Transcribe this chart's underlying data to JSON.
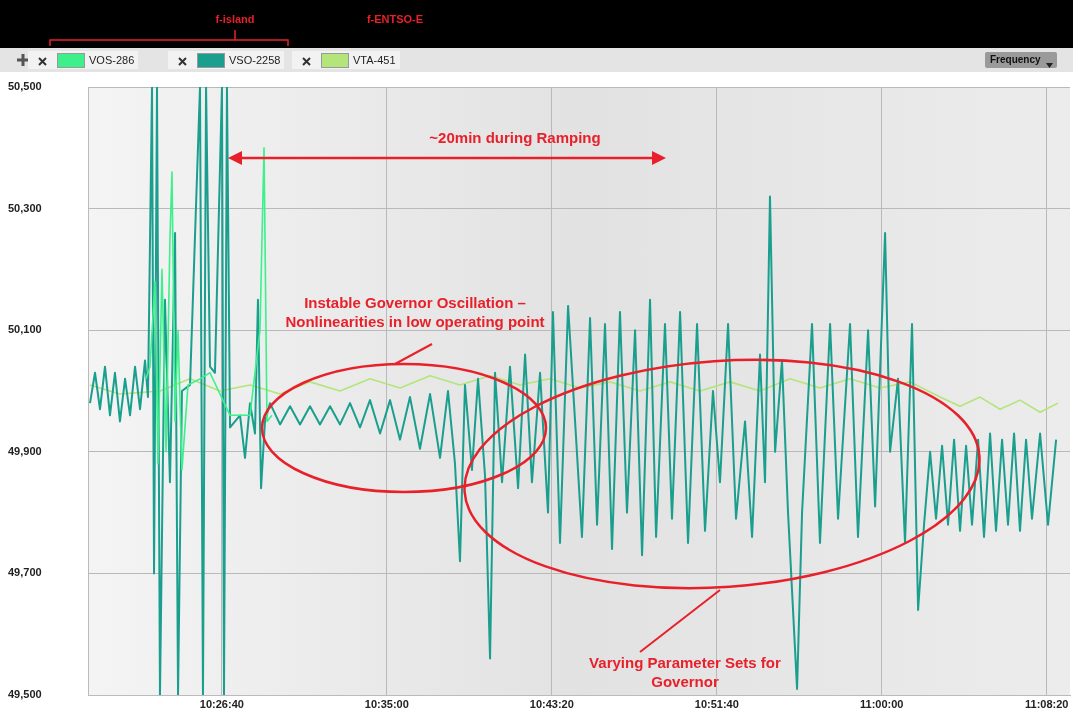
{
  "chart_data": {
    "type": "line",
    "annotations": [
      "~20min during Ramping",
      "Instable Governor Oscillation – Nonlinearities in low operating point",
      "Varying Parameter Sets for Governor",
      "f-island",
      "f-ENTSO-E",
      "Frequency"
    ],
    "series": [
      {
        "name": "VOS-286",
        "color": "#3df08c",
        "x": [
          10.3805,
          10.3839,
          10.3881,
          10.3906,
          10.394,
          10.3974,
          10.4007,
          10.4024,
          10.405,
          10.4075,
          10.4108,
          10.4159,
          10.426,
          10.4344,
          10.4513,
          10.4681,
          10.4765,
          10.4799,
          10.4824,
          10.4866
        ],
        "values": [
          50020,
          50040,
          50180,
          49880,
          50200,
          49900,
          50250,
          50360,
          49950,
          50100,
          49870,
          50010,
          50020,
          50030,
          49960,
          49960,
          50100,
          50400,
          49950,
          49960
        ]
      },
      {
        "name": "VSO-2258",
        "color": "#1a9e8e",
        "x": [
          10.3334,
          10.3376,
          10.3418,
          10.346,
          10.3502,
          10.3544,
          10.3586,
          10.3629,
          10.3671,
          10.3713,
          10.3755,
          10.3797,
          10.3822,
          10.3856,
          10.3873,
          10.3898,
          10.3923,
          10.3965,
          10.4007,
          10.405,
          10.4075,
          10.4108,
          10.4176,
          10.426,
          10.4285,
          10.4311,
          10.4344,
          10.4386,
          10.4445,
          10.4462,
          10.4487,
          10.4513,
          10.4597,
          10.4639,
          10.4681,
          10.4723,
          10.4748,
          10.4774,
          10.4807,
          10.4849,
          10.4934,
          10.5018,
          10.5102,
          10.5186,
          10.527,
          10.5355,
          10.5439,
          10.5523,
          10.5607,
          10.5691,
          10.5776,
          10.586,
          10.5944,
          10.6028,
          10.6112,
          10.6197,
          10.6281,
          10.6348,
          10.6407,
          10.6449,
          10.6491,
          10.655,
          10.6601,
          10.666,
          10.6702,
          10.6744,
          10.6803,
          10.687,
          10.6938,
          10.6997,
          10.7055,
          10.7123,
          10.719,
          10.7232,
          10.7291,
          10.7359,
          10.7418,
          10.7476,
          10.7544,
          10.7603,
          10.767,
          10.7729,
          10.7796,
          10.7855,
          10.7923,
          10.7982,
          10.8049,
          10.81,
          10.8175,
          10.8234,
          10.8302,
          10.8369,
          10.8445,
          10.8512,
          10.8579,
          10.8638,
          10.8706,
          10.8773,
          10.8849,
          10.8908,
          10.8975,
          10.9017,
          10.9059,
          10.9102,
          10.916,
          10.9211,
          10.9287,
          10.9329,
          10.9413,
          10.948,
          10.9565,
          10.9632,
          10.9733,
          10.98,
          10.9885,
          10.9944,
          11.0028,
          11.007,
          11.0137,
          11.0196,
          11.0255,
          11.0306,
          11.0356,
          11.0407,
          11.0457,
          11.0508,
          11.0558,
          11.0609,
          11.0659,
          11.071,
          11.076,
          11.0811,
          11.0861,
          11.0912,
          11.0962,
          11.1013,
          11.1063,
          11.1114,
          11.1164,
          11.1215,
          11.1265,
          11.1333,
          11.14,
          11.1468
        ],
        "values": [
          49980,
          50030,
          49970,
          50040,
          49960,
          50030,
          49950,
          50020,
          49960,
          50040,
          49970,
          50050,
          49990,
          50500,
          49700,
          50500,
          49500,
          50150,
          49850,
          50260,
          49500,
          50000,
          50010,
          50500,
          49500,
          50500,
          50040,
          50030,
          50500,
          49500,
          50500,
          49940,
          49960,
          49890,
          49980,
          49930,
          50150,
          49840,
          49950,
          49980,
          49945,
          49975,
          49945,
          49975,
          49945,
          49975,
          49945,
          49980,
          49940,
          49985,
          49930,
          49985,
          49920,
          49990,
          49905,
          49995,
          49890,
          50000,
          49880,
          49720,
          50010,
          49870,
          50020,
          49860,
          49560,
          50030,
          49850,
          50040,
          49840,
          50060,
          49850,
          50030,
          49800,
          50130,
          49750,
          50140,
          49950,
          49760,
          50120,
          49780,
          50110,
          49740,
          50130,
          49800,
          50100,
          49730,
          50150,
          49760,
          50110,
          49790,
          50130,
          49750,
          50110,
          49770,
          50000,
          49850,
          50110,
          49790,
          49950,
          49760,
          50060,
          49850,
          50320,
          49900,
          50050,
          49800,
          49510,
          49800,
          50110,
          49750,
          50110,
          49790,
          50110,
          49760,
          50100,
          49810,
          50260,
          49900,
          50020,
          49750,
          50110,
          49640,
          49780,
          49900,
          49790,
          49910,
          49780,
          49920,
          49770,
          49910,
          49780,
          49920,
          49760,
          49930,
          49770,
          49920,
          49780,
          49930,
          49770,
          49920,
          49790,
          49930,
          49780,
          49920
        ]
      },
      {
        "name": "VTA-451",
        "color": "#b4e57a",
        "x": [
          10.3334,
          10.3586,
          10.3923,
          10.4176,
          10.4428,
          10.4681,
          10.4934,
          10.5186,
          10.5439,
          10.5691,
          10.5944,
          10.6197,
          10.6449,
          10.6702,
          10.6954,
          10.7207,
          10.746,
          10.7712,
          10.7965,
          10.8217,
          10.847,
          10.8723,
          10.8975,
          10.9228,
          10.948,
          10.9733,
          10.9986,
          11.0238,
          11.0491,
          11.0659,
          11.0828,
          11.0996,
          11.1164,
          11.1333,
          11.1484
        ],
        "values": [
          50010,
          49995,
          50000,
          50020,
          50000,
          50010,
          49995,
          50015,
          50000,
          50020,
          50005,
          50025,
          50010,
          50025,
          50010,
          50020,
          50005,
          50015,
          50000,
          50015,
          50000,
          50015,
          50000,
          50020,
          50005,
          50020,
          50005,
          50015,
          49990,
          49975,
          49990,
          49970,
          49985,
          49965,
          49980
        ]
      }
    ],
    "xlim": [
      10.3317,
      11.1585
    ],
    "xticks": [
      {
        "value": 10.4444,
        "label": "10:26:40"
      },
      {
        "value": 10.5833,
        "label": "10:35:00"
      },
      {
        "value": 10.7222,
        "label": "10:43:20"
      },
      {
        "value": 10.8611,
        "label": "10:51:40"
      },
      {
        "value": 11.0,
        "label": "11:00:00"
      },
      {
        "value": 11.1389,
        "label": "11:08:20"
      }
    ],
    "ylim": [
      49500,
      50500
    ],
    "yticks": [
      {
        "value": 49500,
        "label": "49,500"
      },
      {
        "value": 49700,
        "label": "49,700"
      },
      {
        "value": 49900,
        "label": "49,900"
      },
      {
        "value": 50100,
        "label": "50,100"
      },
      {
        "value": 50300,
        "label": "50,300"
      },
      {
        "value": 50500,
        "label": "50,500"
      }
    ],
    "grid": true,
    "legend": "top left",
    "marker": "none",
    "line_style": "solid"
  }
}
